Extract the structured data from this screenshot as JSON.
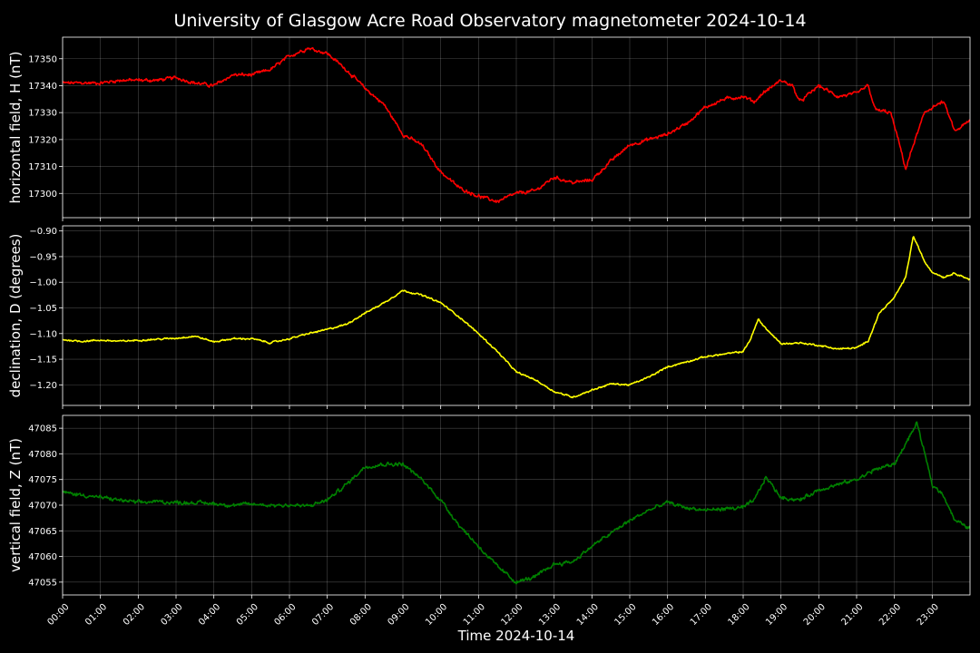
{
  "chart_data": {
    "title": "University of Glasgow Acre Road Observatory magnetometer 2024-10-14",
    "xlabel": "Time 2024-10-14",
    "type": "line",
    "x_ticks": [
      "00:00",
      "01:00",
      "02:00",
      "03:00",
      "04:00",
      "05:00",
      "06:00",
      "07:00",
      "08:00",
      "09:00",
      "10:00",
      "11:00",
      "12:00",
      "13:00",
      "14:00",
      "15:00",
      "16:00",
      "17:00",
      "18:00",
      "19:00",
      "20:00",
      "21:00",
      "22:00",
      "23:00"
    ],
    "xlim_hours": [
      0,
      24
    ],
    "grid": true,
    "panels": [
      {
        "name": "H",
        "ylabel": "horizontal field, H (nT)",
        "color": "#ff0000",
        "ylim": [
          17291,
          17358
        ],
        "y_ticks": [
          17300,
          17310,
          17320,
          17330,
          17340,
          17350
        ],
        "y_tick_labels": [
          "17300",
          "17310",
          "17320",
          "17330",
          "17340",
          "17350"
        ],
        "noise": 0.6,
        "x_hours": [
          0,
          0.5,
          1,
          1.5,
          2,
          2.5,
          3,
          3.5,
          4,
          4.5,
          5,
          5.5,
          6,
          6.5,
          7,
          7.5,
          8,
          8.5,
          9,
          9.5,
          10,
          10.5,
          11,
          11.5,
          12,
          12.5,
          13,
          13.5,
          14,
          14.5,
          15,
          15.5,
          16,
          16.5,
          17,
          17.5,
          18,
          18.3,
          18.5,
          19,
          19.3,
          19.5,
          20,
          20.5,
          21,
          21.3,
          21.5,
          21.9,
          22.1,
          22.3,
          22.5,
          22.8,
          23,
          23.3,
          23.6,
          24
        ],
        "values": [
          17341,
          17341,
          17341,
          17342,
          17342,
          17342,
          17343,
          17341,
          17340,
          17344,
          17344,
          17346,
          17351,
          17354,
          17352,
          17346,
          17339,
          17333,
          17322,
          17318,
          17308,
          17302,
          17299,
          17297,
          17300,
          17301,
          17306,
          17304,
          17305,
          17312,
          17318,
          17320,
          17322,
          17326,
          17332,
          17335,
          17336,
          17334,
          17337,
          17342,
          17340,
          17334,
          17340,
          17336,
          17337,
          17340,
          17331,
          17330,
          17320,
          17309,
          17318,
          17330,
          17332,
          17334,
          17323,
          17327
        ]
      },
      {
        "name": "D",
        "ylabel": "declination, D (degrees)",
        "color": "#ffff00",
        "ylim": [
          -1.24,
          -0.89
        ],
        "y_ticks": [
          -1.2,
          -1.15,
          -1.1,
          -1.05,
          -1.0,
          -0.95,
          -0.9
        ],
        "y_tick_labels": [
          "−1.20",
          "−1.15",
          "−1.10",
          "−1.05",
          "−1.00",
          "−0.95",
          "−0.90"
        ],
        "noise": 0.0015,
        "x_hours": [
          0,
          0.5,
          1,
          1.5,
          2,
          2.5,
          3,
          3.5,
          4,
          4.5,
          5,
          5.5,
          6,
          6.5,
          7,
          7.5,
          8,
          8.5,
          9,
          9.5,
          10,
          10.5,
          11,
          11.5,
          12,
          12.5,
          13,
          13.5,
          14,
          14.5,
          15,
          15.5,
          16,
          16.5,
          17,
          17.5,
          18,
          18.2,
          18.4,
          18.6,
          19,
          19.5,
          20,
          20.5,
          21,
          21.3,
          21.6,
          22,
          22.3,
          22.5,
          22.8,
          23,
          23.3,
          23.6,
          24
        ],
        "values": [
          -1.112,
          -1.115,
          -1.113,
          -1.115,
          -1.113,
          -1.111,
          -1.109,
          -1.105,
          -1.116,
          -1.11,
          -1.11,
          -1.118,
          -1.11,
          -1.1,
          -1.092,
          -1.082,
          -1.06,
          -1.04,
          -1.016,
          -1.025,
          -1.04,
          -1.068,
          -1.1,
          -1.135,
          -1.175,
          -1.19,
          -1.213,
          -1.224,
          -1.21,
          -1.198,
          -1.2,
          -1.185,
          -1.165,
          -1.155,
          -1.145,
          -1.14,
          -1.135,
          -1.11,
          -1.072,
          -1.09,
          -1.12,
          -1.118,
          -1.123,
          -1.13,
          -1.128,
          -1.115,
          -1.06,
          -1.03,
          -0.99,
          -0.91,
          -0.96,
          -0.98,
          -0.99,
          -0.982,
          -0.995
        ]
      },
      {
        "name": "Z",
        "ylabel": "vertical field, Z (nT)",
        "color": "#008000",
        "ylim": [
          47052.5,
          47087.5
        ],
        "y_ticks": [
          47055,
          47060,
          47065,
          47070,
          47075,
          47080,
          47085
        ],
        "y_tick_labels": [
          "47055",
          "47060",
          "47065",
          "47070",
          "47075",
          "47080",
          "47085"
        ],
        "noise": 0.35,
        "x_hours": [
          0,
          0.5,
          1,
          1.5,
          2,
          2.5,
          3,
          3.5,
          4,
          4.5,
          5,
          5.5,
          6,
          6.5,
          7,
          7.5,
          8,
          8.5,
          9,
          9.5,
          10,
          10.5,
          11,
          11.5,
          12,
          12.5,
          13,
          13.5,
          14,
          14.5,
          15,
          15.5,
          16,
          16.5,
          17,
          17.5,
          18,
          18.3,
          18.6,
          19,
          19.5,
          20,
          20.5,
          21,
          21.5,
          22,
          22.3,
          22.6,
          22.8,
          23,
          23.3,
          23.6,
          24
        ],
        "values": [
          47072.5,
          47072,
          47071.5,
          47071,
          47070.5,
          47070.7,
          47070.5,
          47070.5,
          47070.3,
          47070,
          47070.2,
          47070,
          47070,
          47069.8,
          47071,
          47074,
          47077.5,
          47078,
          47078,
          47075,
          47071,
          47066,
          47062,
          47058,
          47055,
          47056,
          47058.5,
          47059,
          47062,
          47064.5,
          47067,
          47069,
          47070.5,
          47069.5,
          47069,
          47069.3,
          47069.5,
          47071,
          47075.5,
          47071.5,
          47071,
          47073,
          47074,
          47075,
          47077,
          47078,
          47082,
          47086,
          47080,
          47074,
          47072,
          47067,
          47065.5
        ]
      }
    ]
  }
}
